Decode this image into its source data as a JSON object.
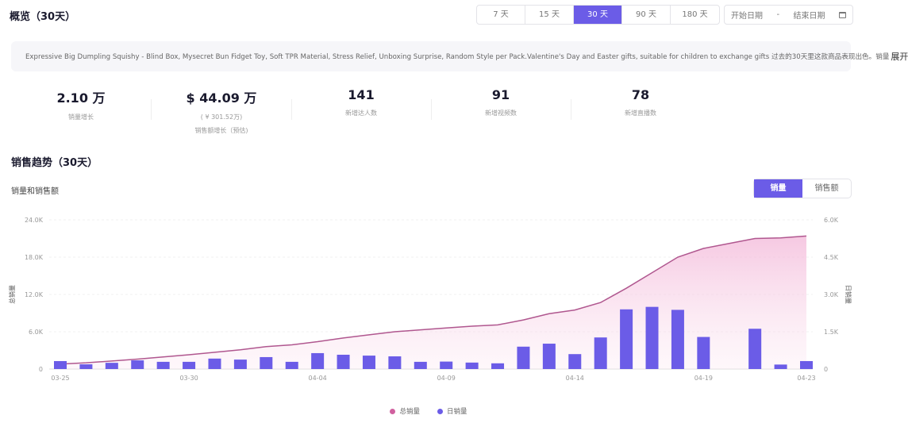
{
  "header": {
    "title": "概览（30天）",
    "ranges": [
      "7 天",
      "15 天",
      "30 天",
      "90 天",
      "180 天"
    ],
    "active_range": 2,
    "start_placeholder": "开始日期",
    "separator": "-",
    "end_placeholder": "结束日期"
  },
  "banner": {
    "text": "Expressive Big Dumpling Squishy - Blind Box, Mysecret Bun Fidget Toy, Soft TPR Material, Stress Relief, Unboxing Surprise, Random Style per Pack.Valentine's Day and Easter gifts, suitable for children to exchange gifts 过去的30天里这款商品表现出色。销量",
    "expand": "展开"
  },
  "stats": [
    {
      "value": "2.10 万",
      "label": "销量增长"
    },
    {
      "value": "$ 44.09 万",
      "sub": "( ¥ 301.52万)",
      "label": "销售额增长（预估)"
    },
    {
      "value": "141",
      "label": "新增达人数"
    },
    {
      "value": "91",
      "label": "新增视频数"
    },
    {
      "value": "78",
      "label": "新增直播数"
    }
  ],
  "trend": {
    "title": "销售趋势（30天）",
    "subtitle": "销量和销售额",
    "toggle": [
      "销量",
      "销售额"
    ],
    "active_toggle": 0
  },
  "chart_data": {
    "type": "bar+area",
    "dates": [
      "03-25",
      "03-26",
      "03-27",
      "03-28",
      "03-29",
      "03-30",
      "03-31",
      "04-01",
      "04-02",
      "04-03",
      "04-04",
      "04-05",
      "04-06",
      "04-07",
      "04-08",
      "04-09",
      "04-10",
      "04-11",
      "04-12",
      "04-13",
      "04-14",
      "04-15",
      "04-16",
      "04-17",
      "04-18",
      "04-19",
      "04-20",
      "04-21",
      "04-22",
      "04-23"
    ],
    "xtick_labels": [
      "03-25",
      "03-30",
      "04-04",
      "04-09",
      "04-14",
      "04-19",
      "04-23"
    ],
    "series": [
      {
        "name": "总销量",
        "type": "area",
        "axis": "left",
        "color": "#c95a9a",
        "values": [
          800,
          1000,
          1300,
          1600,
          1950,
          2300,
          2700,
          3100,
          3600,
          3900,
          4400,
          5000,
          5500,
          6000,
          6300,
          6600,
          6900,
          7100,
          7900,
          8900,
          9500,
          10700,
          13000,
          15500,
          18000,
          19400,
          20200,
          21000,
          21100,
          21400
        ]
      },
      {
        "name": "日销量",
        "type": "bar",
        "axis": "right",
        "color": "#6b5ce7",
        "values": [
          320,
          190,
          250,
          350,
          290,
          290,
          420,
          380,
          480,
          290,
          640,
          575,
          540,
          510,
          290,
          300,
          260,
          230,
          900,
          1020,
          600,
          1270,
          2400,
          2500,
          2380,
          1290,
          0,
          1620,
          180,
          320
        ]
      }
    ],
    "left_axis": {
      "title": "总销量",
      "ylim": [
        0,
        24000
      ],
      "ticks": [
        "0",
        "6.0K",
        "12.0K",
        "18.0K",
        "24.0K"
      ]
    },
    "right_axis": {
      "title": "日销量",
      "ylim": [
        0,
        6000
      ],
      "ticks": [
        "0",
        "1.5K",
        "3.0K",
        "4.5K",
        "6.0K"
      ]
    },
    "grid": true,
    "legend": "bottom"
  }
}
